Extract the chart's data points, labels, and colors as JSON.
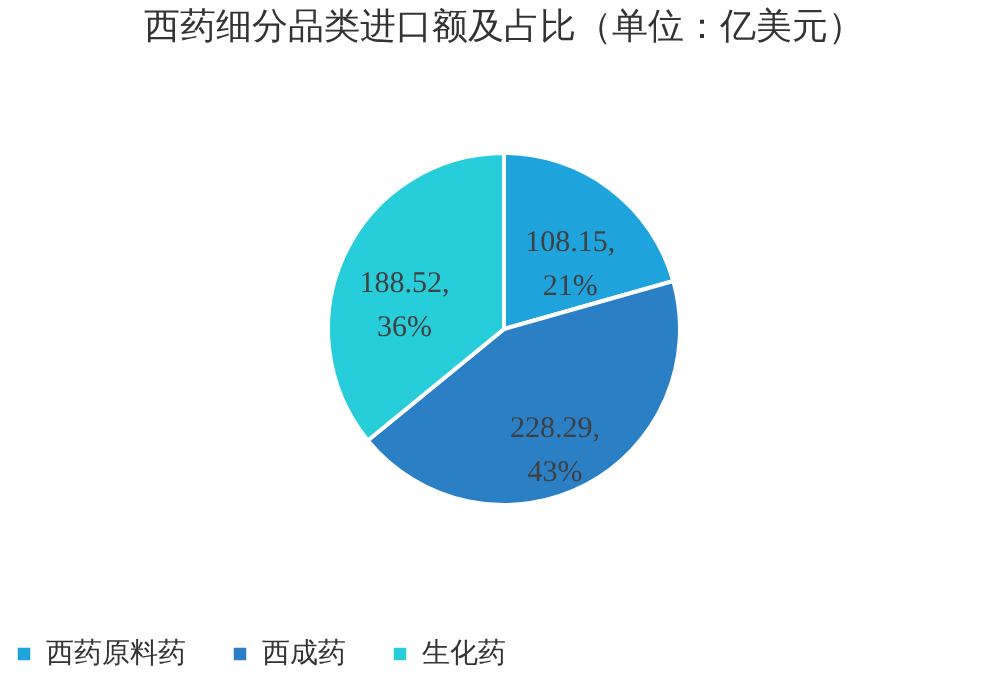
{
  "chart_data": {
    "type": "pie",
    "title": "西药细分品类进口额及占比（单位：亿美元）",
    "categories": [
      "西药原料药",
      "西成药",
      "生化药"
    ],
    "values": [
      108.15,
      228.29,
      188.52
    ],
    "colors": [
      "#1fa3dc",
      "#2a7fc5",
      "#27cdd8"
    ],
    "value_labels": [
      "108.15, 21%",
      "228.29, 43%",
      "188.52, 36%"
    ],
    "legend": "bottom"
  }
}
